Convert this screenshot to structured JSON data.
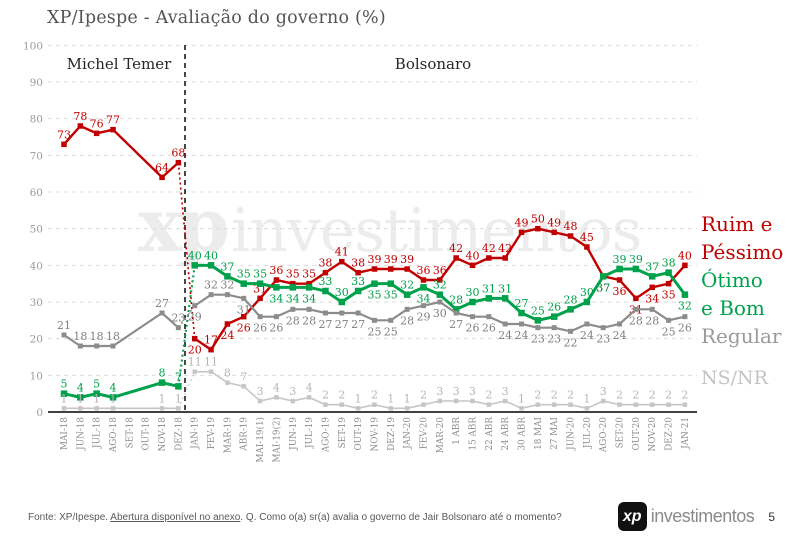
{
  "title": "XP/Ipespe - Avaliação do governo (%)",
  "periods": {
    "temer": "Michel Temer",
    "bolsonaro": "Bolsonaro"
  },
  "legend": {
    "ruim_line1": "Ruim e",
    "ruim_line2": "Péssimo",
    "otimo_line1": "Ótimo",
    "otimo_line2": "e Bom",
    "regular": "Regular",
    "nsnr": "NS/NR"
  },
  "watermark": {
    "mark": "xp",
    "text": "investimentos"
  },
  "footer": {
    "fonte_prefix": "Fonte: XP/Ipespe. ",
    "fonte_link": "Abertura disponível no anexo",
    "fonte_suffix": ". Q. Como o(a) sr(a) avalia o governo de Jair Bolsonaro até o momento?"
  },
  "brand": {
    "logo_mark": "xp",
    "logo_text": "investimentos",
    "page_number": "5"
  },
  "colors": {
    "red": "#C00000",
    "green": "#00A14B",
    "gray": "#8C8C8C",
    "light_gray": "#C6C6C6",
    "nsnr_label": "#B5B5B5",
    "grid": "#DBDBDB",
    "axis_text": "#8C8C8C",
    "title_text": "#545454",
    "divider": "#1A1A1A",
    "axis_line": "#000000"
  },
  "chart_data": {
    "type": "line",
    "title": "XP/Ipespe - Avaliação do governo (%)",
    "xlabel": "",
    "ylabel": "",
    "ylim": [
      0,
      100
    ],
    "y_tick_step": 10,
    "grid": true,
    "legend_position": "right",
    "categories": [
      "MAI-18",
      "JUN-18",
      "JUL-18",
      "AGO-18",
      "SET-18",
      "OUT-18",
      "NOV-18",
      "DEZ-18",
      "JAN-19",
      "FEV-19",
      "MAR-19",
      "ABR-19",
      "MAI-19(1)",
      "MAI-19(2)",
      "JUN-19",
      "JUL-19",
      "AGO-19",
      "SET-19",
      "OUT-19",
      "NOV-19",
      "DEZ-19",
      "JAN-20",
      "FEV-20",
      "MAR-20",
      "1 ABR",
      "15 ABR",
      "22 ABR",
      "24 ABR",
      "30 ABR",
      "18 MAI",
      "27 MAI",
      "JUN-20",
      "JUL-20",
      "AGO-20",
      "SET-20",
      "OUT-20",
      "NOV-20",
      "DEZ-20",
      "JAN-21"
    ],
    "series": [
      {
        "name": "Ruim e Péssimo",
        "color": "#C00000",
        "values": [
          73,
          78,
          76,
          77,
          null,
          null,
          64,
          68,
          20,
          17,
          24,
          26,
          31,
          36,
          35,
          35,
          38,
          41,
          38,
          39,
          39,
          39,
          36,
          36,
          42,
          40,
          42,
          42,
          49,
          50,
          49,
          48,
          45,
          37,
          36,
          31,
          34,
          35,
          40
        ]
      },
      {
        "name": "Ótimo e Bom",
        "color": "#00A14B",
        "values": [
          5,
          4,
          5,
          4,
          null,
          null,
          8,
          7,
          40,
          40,
          37,
          35,
          35,
          34,
          34,
          34,
          33,
          30,
          33,
          35,
          35,
          32,
          34,
          32,
          28,
          30,
          31,
          31,
          27,
          25,
          26,
          28,
          30,
          37,
          39,
          39,
          37,
          38,
          32
        ]
      },
      {
        "name": "Regular",
        "color": "#8C8C8C",
        "values": [
          21,
          18,
          18,
          18,
          null,
          null,
          27,
          23,
          29,
          32,
          32,
          31,
          26,
          26,
          28,
          28,
          27,
          27,
          27,
          25,
          25,
          28,
          29,
          30,
          27,
          26,
          26,
          24,
          24,
          23,
          23,
          22,
          24,
          23,
          24,
          28,
          28,
          25,
          26
        ]
      },
      {
        "name": "NS/NR",
        "color": "#C6C6C6",
        "values": [
          1,
          1,
          1,
          1,
          null,
          null,
          1,
          1,
          11,
          11,
          8,
          7,
          3,
          4,
          3,
          4,
          2,
          2,
          1,
          2,
          1,
          1,
          2,
          3,
          3,
          3,
          2,
          3,
          1,
          2,
          2,
          2,
          1,
          3,
          2,
          2,
          2,
          2,
          2
        ]
      }
    ],
    "annotations": {
      "periods": [
        {
          "label": "Michel Temer"
        },
        {
          "label": "Bolsonaro"
        }
      ],
      "divider_after_category": "DEZ-18",
      "dotted_transition": "DEZ-18 to JAN-19"
    }
  }
}
